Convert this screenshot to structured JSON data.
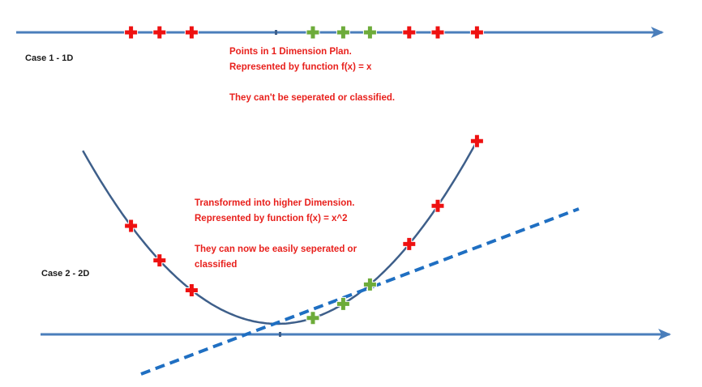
{
  "colors": {
    "axis": "#4a7ebb",
    "curve": "#3e5f8a",
    "separator": "#1f6fc2",
    "class_a": "#ee1111",
    "class_b": "#6dab3a",
    "note_text": "#e8201c"
  },
  "marker_icons": {
    "class_a": "red-plus-icon",
    "class_b": "green-plus-icon"
  },
  "case1": {
    "label": "Case 1 - 1D",
    "note_lines": [
      "Points in 1 Dimension Plan.",
      "Represented by function f(x) = x",
      "",
      "They can't be seperated or classified."
    ],
    "points": [
      {
        "x": -4.1,
        "class": "class_a"
      },
      {
        "x": -3.3,
        "class": "class_a"
      },
      {
        "x": -2.4,
        "class": "class_a"
      },
      {
        "x": 1.0,
        "class": "class_b"
      },
      {
        "x": 1.85,
        "class": "class_b"
      },
      {
        "x": 2.6,
        "class": "class_b"
      },
      {
        "x": 3.7,
        "class": "class_a"
      },
      {
        "x": 4.5,
        "class": "class_a"
      },
      {
        "x": 5.6,
        "class": "class_a"
      }
    ]
  },
  "case2": {
    "label": "Case 2 - 2D",
    "note_lines": [
      "Transformed into higher Dimension.",
      "Represented by function f(x) = x^2",
      "",
      "They can now be easily seperated or",
      "classified"
    ],
    "function": "f(x) = x^2",
    "points": [
      {
        "x": -4.1,
        "y": 16.81,
        "class": "class_a"
      },
      {
        "x": -3.3,
        "y": 10.89,
        "class": "class_a"
      },
      {
        "x": -2.4,
        "y": 5.76,
        "class": "class_a"
      },
      {
        "x": 1.0,
        "y": 1.0,
        "class": "class_b"
      },
      {
        "x": 1.85,
        "y": 3.42,
        "class": "class_b"
      },
      {
        "x": 2.6,
        "y": 6.76,
        "class": "class_b"
      },
      {
        "x": 3.7,
        "y": 13.69,
        "class": "class_a"
      },
      {
        "x": 4.5,
        "y": 20.25,
        "class": "class_a"
      },
      {
        "x": 5.6,
        "y": 31.36,
        "class": "class_a"
      }
    ]
  }
}
